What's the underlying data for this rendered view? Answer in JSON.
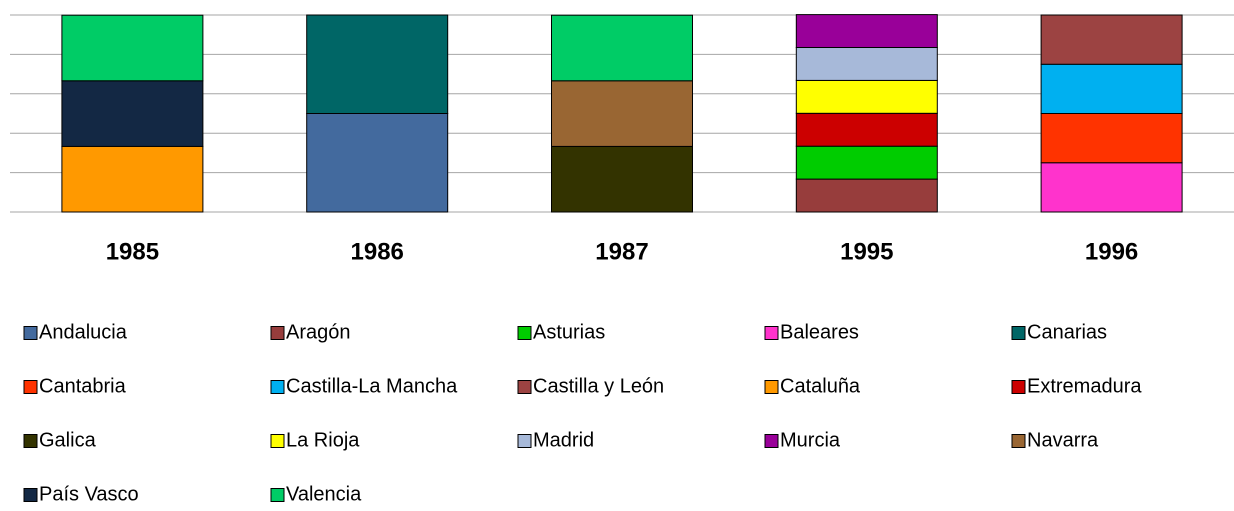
{
  "chart_data": {
    "type": "stacked_bar",
    "categories": [
      "1985",
      "1986",
      "1987",
      "1995",
      "1996"
    ],
    "ylim": [
      0,
      100
    ],
    "yticks": [
      0,
      20,
      40,
      60,
      80,
      100
    ],
    "grid": true,
    "series": [
      {
        "name": "Andalucia",
        "color": "#436a9e",
        "values": [
          null,
          50,
          null,
          null,
          null
        ]
      },
      {
        "name": "Aragón",
        "color": "#973d3c",
        "values": [
          null,
          null,
          null,
          16.7,
          null
        ]
      },
      {
        "name": "Asturias",
        "color": "#00cc00",
        "values": [
          null,
          null,
          null,
          16.7,
          null
        ]
      },
      {
        "name": "Baleares",
        "color": "#ff33cc",
        "values": [
          null,
          null,
          null,
          null,
          25
        ]
      },
      {
        "name": "Canarias",
        "color": "#006666",
        "values": [
          null,
          50,
          null,
          null,
          null
        ]
      },
      {
        "name": "Cantabria",
        "color": "#ff3300",
        "values": [
          null,
          null,
          null,
          null,
          25
        ]
      },
      {
        "name": "Castilla-La Mancha",
        "color": "#00b0f0",
        "values": [
          null,
          null,
          null,
          null,
          25
        ]
      },
      {
        "name": "Castilla y León",
        "color": "#9c4342",
        "values": [
          null,
          null,
          null,
          null,
          25
        ]
      },
      {
        "name": "Cataluña",
        "color": "#ff9900",
        "values": [
          33.3,
          null,
          null,
          null,
          null
        ]
      },
      {
        "name": "Extremadura",
        "color": "#cc0000",
        "values": [
          null,
          null,
          null,
          16.7,
          null
        ]
      },
      {
        "name": "Galica",
        "color": "#333300",
        "values": [
          null,
          null,
          33.3,
          null,
          null
        ]
      },
      {
        "name": "La Rioja",
        "color": "#ffff00",
        "values": [
          null,
          null,
          null,
          16.7,
          null
        ]
      },
      {
        "name": "Madrid",
        "color": "#a7b9d9",
        "values": [
          null,
          null,
          null,
          16.7,
          null
        ]
      },
      {
        "name": "Murcia",
        "color": "#990099",
        "values": [
          null,
          null,
          null,
          16.7,
          null
        ]
      },
      {
        "name": "Navarra",
        "color": "#996633",
        "values": [
          null,
          null,
          33.3,
          null,
          null
        ]
      },
      {
        "name": "País Vasco",
        "color": "#132844",
        "values": [
          33.3,
          null,
          null,
          null,
          null
        ]
      },
      {
        "name": "Valencia",
        "color": "#00cc66",
        "values": [
          33.3,
          null,
          33.3,
          null,
          null
        ]
      }
    ]
  }
}
